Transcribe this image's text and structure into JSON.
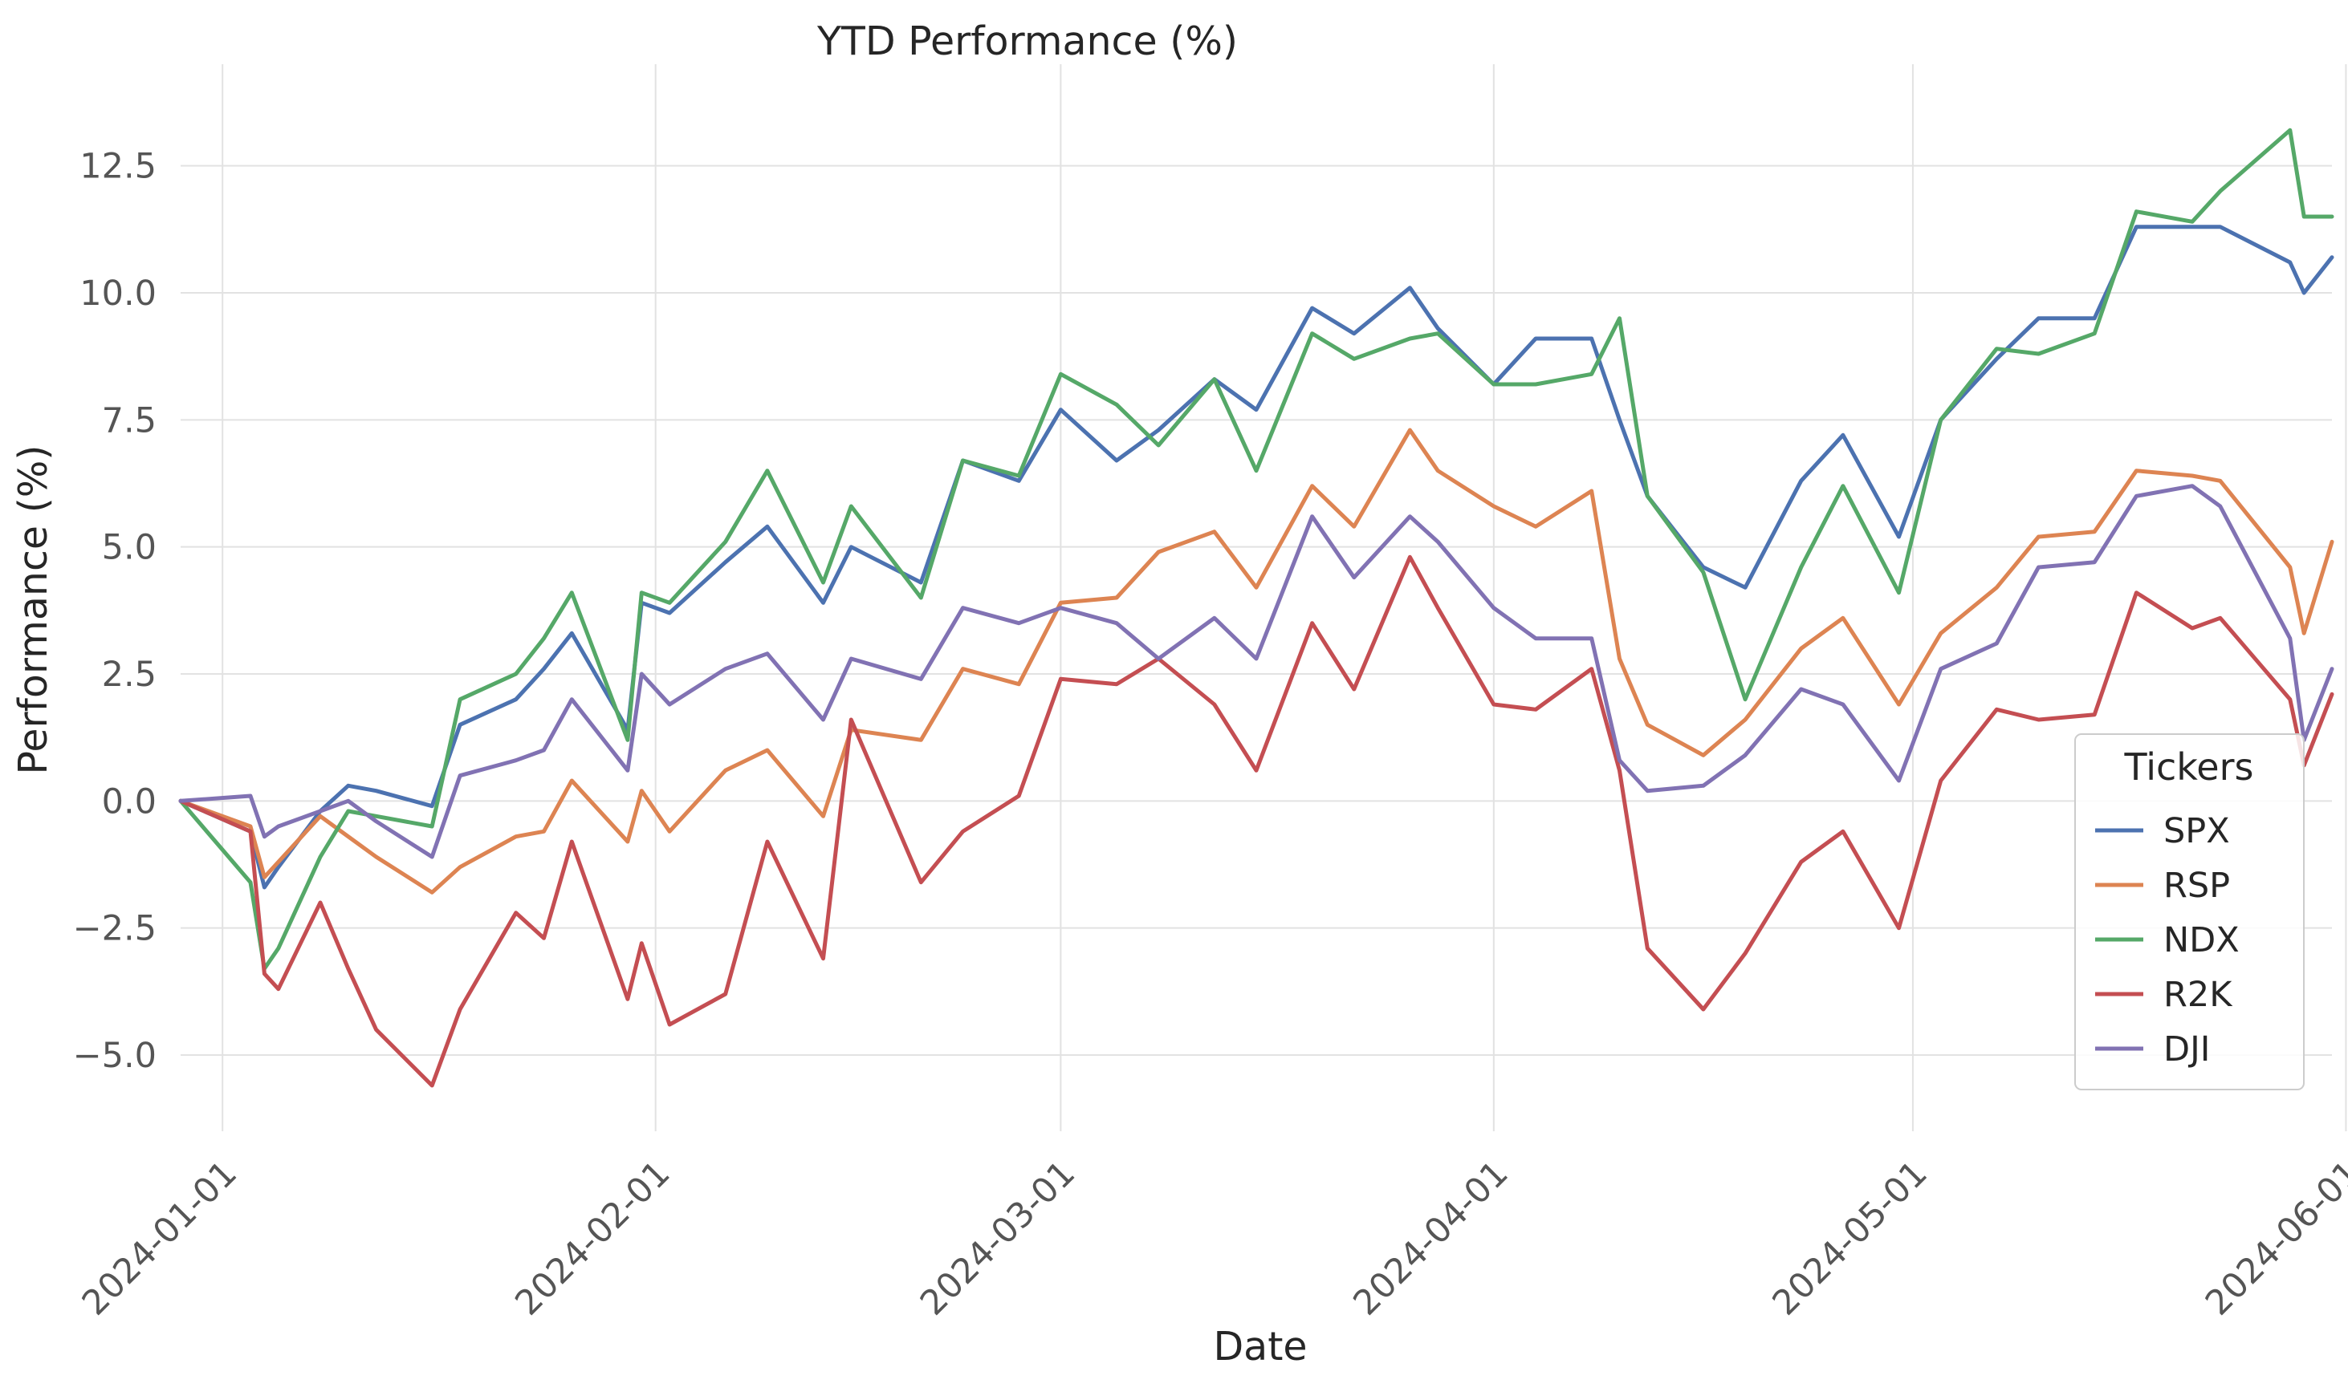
{
  "chart_data": {
    "type": "line",
    "title": "YTD Performance (%)",
    "xlabel": "Date",
    "ylabel": "Performance (%)",
    "xlim": [
      "2023-12-29",
      "2024-05-31"
    ],
    "ylim": [
      -6.5,
      14.5
    ],
    "yticks": [
      -5.0,
      -2.5,
      0.0,
      2.5,
      5.0,
      7.5,
      10.0,
      12.5
    ],
    "ytick_labels": [
      "−5.0",
      "−2.5",
      "0.0",
      "2.5",
      "5.0",
      "7.5",
      "10.0",
      "12.5"
    ],
    "xticks": [
      "2024-01-01",
      "2024-02-01",
      "2024-03-01",
      "2024-04-01",
      "2024-05-01",
      "2024-06-01"
    ],
    "xtick_labels": [
      "2024-01-01",
      "2024-02-01",
      "2024-03-01",
      "2024-04-01",
      "2024-05-01",
      "2024-06-01"
    ],
    "grid": true,
    "legend": {
      "title": "Tickers",
      "placement": "lower-right"
    },
    "x": [
      "2023-12-29",
      "2024-01-03",
      "2024-01-04",
      "2024-01-05",
      "2024-01-08",
      "2024-01-10",
      "2024-01-12",
      "2024-01-16",
      "2024-01-18",
      "2024-01-22",
      "2024-01-24",
      "2024-01-26",
      "2024-01-30",
      "2024-01-31",
      "2024-02-02",
      "2024-02-06",
      "2024-02-09",
      "2024-02-13",
      "2024-02-15",
      "2024-02-20",
      "2024-02-23",
      "2024-02-27",
      "2024-03-01",
      "2024-03-05",
      "2024-03-08",
      "2024-03-12",
      "2024-03-15",
      "2024-03-19",
      "2024-03-22",
      "2024-03-26",
      "2024-03-28",
      "2024-04-01",
      "2024-04-04",
      "2024-04-08",
      "2024-04-10",
      "2024-04-12",
      "2024-04-16",
      "2024-04-19",
      "2024-04-23",
      "2024-04-26",
      "2024-04-30",
      "2024-05-03",
      "2024-05-07",
      "2024-05-10",
      "2024-05-14",
      "2024-05-17",
      "2024-05-21",
      "2024-05-23",
      "2024-05-28",
      "2024-05-29",
      "2024-05-31"
    ],
    "series": [
      {
        "name": "SPX",
        "color": "#4c72b0",
        "values": [
          0.0,
          -0.6,
          -1.7,
          -1.3,
          -0.2,
          0.3,
          0.2,
          -0.1,
          1.5,
          2.0,
          2.6,
          3.3,
          1.4,
          3.9,
          3.7,
          4.7,
          5.4,
          3.9,
          5.0,
          4.3,
          6.7,
          6.3,
          7.7,
          6.7,
          7.3,
          8.3,
          7.7,
          9.7,
          9.2,
          10.1,
          9.3,
          8.2,
          9.1,
          9.1,
          7.5,
          6.0,
          4.6,
          4.2,
          6.3,
          7.2,
          5.2,
          7.5,
          8.7,
          9.5,
          9.5,
          11.3,
          11.3,
          11.3,
          10.6,
          10.0,
          10.7
        ]
      },
      {
        "name": "RSP",
        "color": "#dd8452",
        "values": [
          0.0,
          -0.5,
          -1.5,
          -1.2,
          -0.3,
          -0.7,
          -1.1,
          -1.8,
          -1.3,
          -0.7,
          -0.6,
          0.4,
          -0.8,
          0.2,
          -0.6,
          0.6,
          1.0,
          -0.3,
          1.4,
          1.2,
          2.6,
          2.3,
          3.9,
          4.0,
          4.9,
          5.3,
          4.2,
          6.2,
          5.4,
          7.3,
          6.5,
          5.8,
          5.4,
          6.1,
          2.8,
          1.5,
          0.9,
          1.6,
          3.0,
          3.6,
          1.9,
          3.3,
          4.2,
          5.2,
          5.3,
          6.5,
          6.4,
          6.3,
          4.6,
          3.3,
          5.1
        ]
      },
      {
        "name": "NDX",
        "color": "#55a868",
        "values": [
          0.0,
          -1.6,
          -3.3,
          -2.9,
          -1.1,
          -0.2,
          -0.3,
          -0.5,
          2.0,
          2.5,
          3.2,
          4.1,
          1.2,
          4.1,
          3.9,
          5.1,
          6.5,
          4.3,
          5.8,
          4.0,
          6.7,
          6.4,
          8.4,
          7.8,
          7.0,
          8.3,
          6.5,
          9.2,
          8.7,
          9.1,
          9.2,
          8.2,
          8.2,
          8.4,
          9.5,
          6.0,
          4.5,
          2.0,
          4.6,
          6.2,
          4.1,
          7.5,
          8.9,
          8.8,
          9.2,
          11.6,
          11.4,
          12.0,
          13.2,
          11.5,
          11.5
        ]
      },
      {
        "name": "R2K",
        "color": "#c44e52",
        "values": [
          0.0,
          -0.6,
          -3.4,
          -3.7,
          -2.0,
          -3.3,
          -4.5,
          -5.6,
          -4.1,
          -2.2,
          -2.7,
          -0.8,
          -3.9,
          -2.8,
          -4.4,
          -3.8,
          -0.8,
          -3.1,
          1.6,
          -1.6,
          -0.6,
          0.1,
          2.4,
          2.3,
          2.8,
          1.9,
          0.6,
          3.5,
          2.2,
          4.8,
          3.8,
          1.9,
          1.8,
          2.6,
          0.6,
          -2.9,
          -4.1,
          -3.0,
          -1.2,
          -0.6,
          -2.5,
          0.4,
          1.8,
          1.6,
          1.7,
          4.1,
          3.4,
          3.6,
          2.0,
          0.7,
          2.1
        ]
      },
      {
        "name": "DJI",
        "color": "#8172b3",
        "values": [
          0.0,
          0.1,
          -0.7,
          -0.5,
          -0.2,
          0.0,
          -0.4,
          -1.1,
          0.5,
          0.8,
          1.0,
          2.0,
          0.6,
          2.5,
          1.9,
          2.6,
          2.9,
          1.6,
          2.8,
          2.4,
          3.8,
          3.5,
          3.8,
          3.5,
          2.8,
          3.6,
          2.8,
          5.6,
          4.4,
          5.6,
          5.1,
          3.8,
          3.2,
          3.2,
          0.8,
          0.2,
          0.3,
          0.9,
          2.2,
          1.9,
          0.4,
          2.6,
          3.1,
          4.6,
          4.7,
          6.0,
          6.2,
          5.8,
          3.2,
          1.2,
          2.6
        ]
      }
    ]
  }
}
